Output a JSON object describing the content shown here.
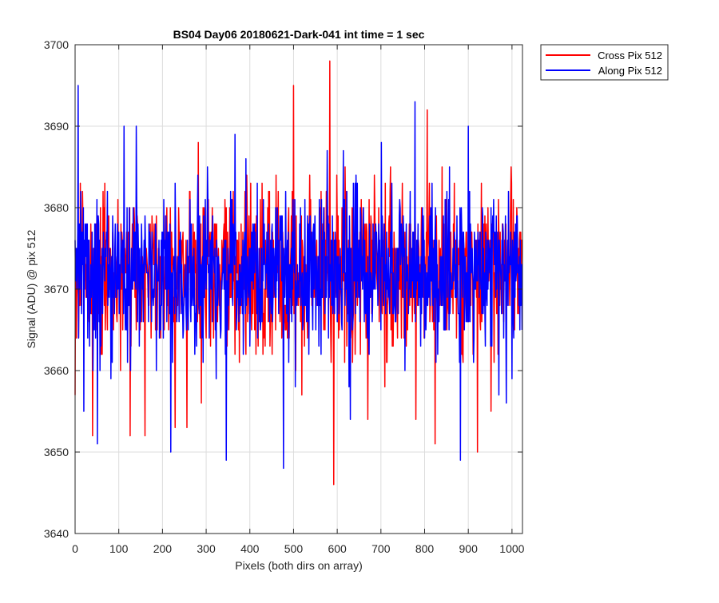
{
  "chart_data": {
    "type": "line",
    "title": "BS04 Day06 20180621-Dark-041 int time = 1 sec",
    "xlabel": "Pixels (both dirs on array)",
    "ylabel": "Signal (ADU) @ pix 512",
    "xlim": [
      0,
      1024
    ],
    "ylim": [
      3640,
      3700
    ],
    "xticks": [
      0,
      100,
      200,
      300,
      400,
      500,
      600,
      700,
      800,
      900,
      1000
    ],
    "yticks": [
      3640,
      3650,
      3660,
      3670,
      3680,
      3690,
      3700
    ],
    "x_tick_labels": [
      "0",
      "100",
      "200",
      "300",
      "400",
      "500",
      "600",
      "700",
      "800",
      "900",
      "1000"
    ],
    "y_tick_labels": [
      "3640",
      "3650",
      "3660",
      "3670",
      "3680",
      "3690",
      "3700"
    ],
    "grid": true,
    "legend_position": "outside-top-right",
    "series": [
      {
        "name": "Cross Pix 512",
        "color": "#ff0000",
        "mean": 3672,
        "noise_std": 5,
        "x_start": 0,
        "x_step": 1,
        "count": 1024,
        "seed": 17,
        "spikes": [
          {
            "x": 0,
            "y": 3657
          },
          {
            "x": 40,
            "y": 3652
          },
          {
            "x": 126,
            "y": 3652
          },
          {
            "x": 160,
            "y": 3652
          },
          {
            "x": 229,
            "y": 3653
          },
          {
            "x": 256,
            "y": 3653
          },
          {
            "x": 282,
            "y": 3688
          },
          {
            "x": 500,
            "y": 3695
          },
          {
            "x": 583,
            "y": 3698
          },
          {
            "x": 592,
            "y": 3646
          },
          {
            "x": 670,
            "y": 3654
          },
          {
            "x": 780,
            "y": 3654
          },
          {
            "x": 806,
            "y": 3692
          },
          {
            "x": 824,
            "y": 3651
          },
          {
            "x": 921,
            "y": 3650
          },
          {
            "x": 952,
            "y": 3655
          }
        ]
      },
      {
        "name": "Along Pix 512",
        "color": "#0000ff",
        "mean": 3672,
        "noise_std": 5,
        "x_start": 0,
        "x_step": 1,
        "count": 1024,
        "seed": 91,
        "spikes": [
          {
            "x": 7,
            "y": 3695
          },
          {
            "x": 20,
            "y": 3655
          },
          {
            "x": 51,
            "y": 3651
          },
          {
            "x": 112,
            "y": 3690
          },
          {
            "x": 140,
            "y": 3690
          },
          {
            "x": 219,
            "y": 3650
          },
          {
            "x": 346,
            "y": 3649
          },
          {
            "x": 366,
            "y": 3689
          },
          {
            "x": 477,
            "y": 3648
          },
          {
            "x": 630,
            "y": 3654
          },
          {
            "x": 778,
            "y": 3693
          },
          {
            "x": 882,
            "y": 3649
          },
          {
            "x": 900,
            "y": 3690
          },
          {
            "x": 987,
            "y": 3656
          }
        ]
      }
    ]
  }
}
